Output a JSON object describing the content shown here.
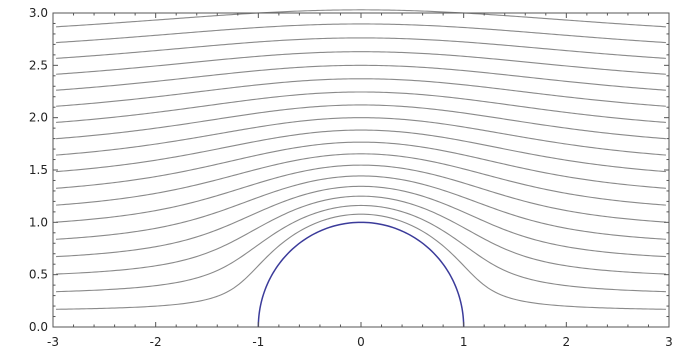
{
  "chart_data": {
    "type": "line",
    "title": "",
    "xlabel": "",
    "ylabel": "",
    "xlim": [
      -3,
      3
    ],
    "ylim": [
      0,
      3
    ],
    "x_ticks": [
      -3,
      -2,
      -1,
      0,
      1,
      2,
      3
    ],
    "x_tick_labels": [
      "-3",
      "-2",
      "-1",
      "0",
      "1",
      "2",
      "3"
    ],
    "y_ticks": [
      0,
      0.5,
      1,
      1.5,
      2,
      2.5,
      3
    ],
    "y_tick_labels": [
      "0.0",
      "0.5",
      "1.0",
      "1.5",
      "2.0",
      "2.5",
      "3.0"
    ],
    "grid": false,
    "frame": true,
    "streamline_psi_values": [
      0.15,
      0.3,
      0.45,
      0.6,
      0.75,
      0.9,
      1.05,
      1.2,
      1.35,
      1.5,
      1.65,
      1.8,
      1.95,
      2.1,
      2.25,
      2.4,
      2.55,
      2.7
    ],
    "streamline_function": "psi = y * (1 - 1 / (x^2 + y^2))",
    "obstacle": {
      "shape": "semicircle",
      "center": [
        0,
        0
      ],
      "radius": 1
    },
    "colors": {
      "streamline": "#8a8a8a",
      "obstacle": "#3b3b9a",
      "frame": "#555555"
    }
  }
}
